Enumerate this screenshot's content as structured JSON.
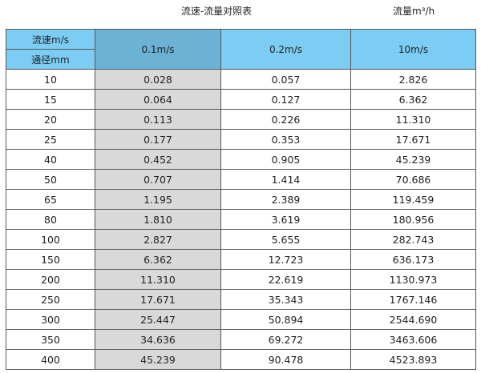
{
  "title": "流速-流量对照表",
  "unit": "流量m³/h",
  "header": {
    "velocity_label": "流速m/s",
    "diameter_label": "通径mm",
    "columns": [
      "0.1m/s",
      "0.2m/s",
      "10m/s"
    ]
  },
  "rows": [
    [
      "10",
      "0.028",
      "0.057",
      "2.826"
    ],
    [
      "15",
      "0.064",
      "0.127",
      "6.362"
    ],
    [
      "20",
      "0.113",
      "0.226",
      "11.310"
    ],
    [
      "25",
      "0.177",
      "0.353",
      "17.671"
    ],
    [
      "40",
      "0.452",
      "0.905",
      "45.239"
    ],
    [
      "50",
      "0.707",
      "1.414",
      "70.686"
    ],
    [
      "65",
      "1.195",
      "2.389",
      "119.459"
    ],
    [
      "80",
      "1.810",
      "3.619",
      "180.956"
    ],
    [
      "100",
      "2.827",
      "5.655",
      "282.743"
    ],
    [
      "150",
      "6.362",
      "12.723",
      "636.173"
    ],
    [
      "200",
      "11.310",
      "22.619",
      "1130.973"
    ],
    [
      "250",
      "17.671",
      "35.343",
      "1767.146"
    ],
    [
      "300",
      "25.447",
      "50.894",
      "2544.690"
    ],
    [
      "350",
      "34.636",
      "69.272",
      "3463.606"
    ],
    [
      "400",
      "45.239",
      "90.478",
      "4523.893"
    ]
  ]
}
